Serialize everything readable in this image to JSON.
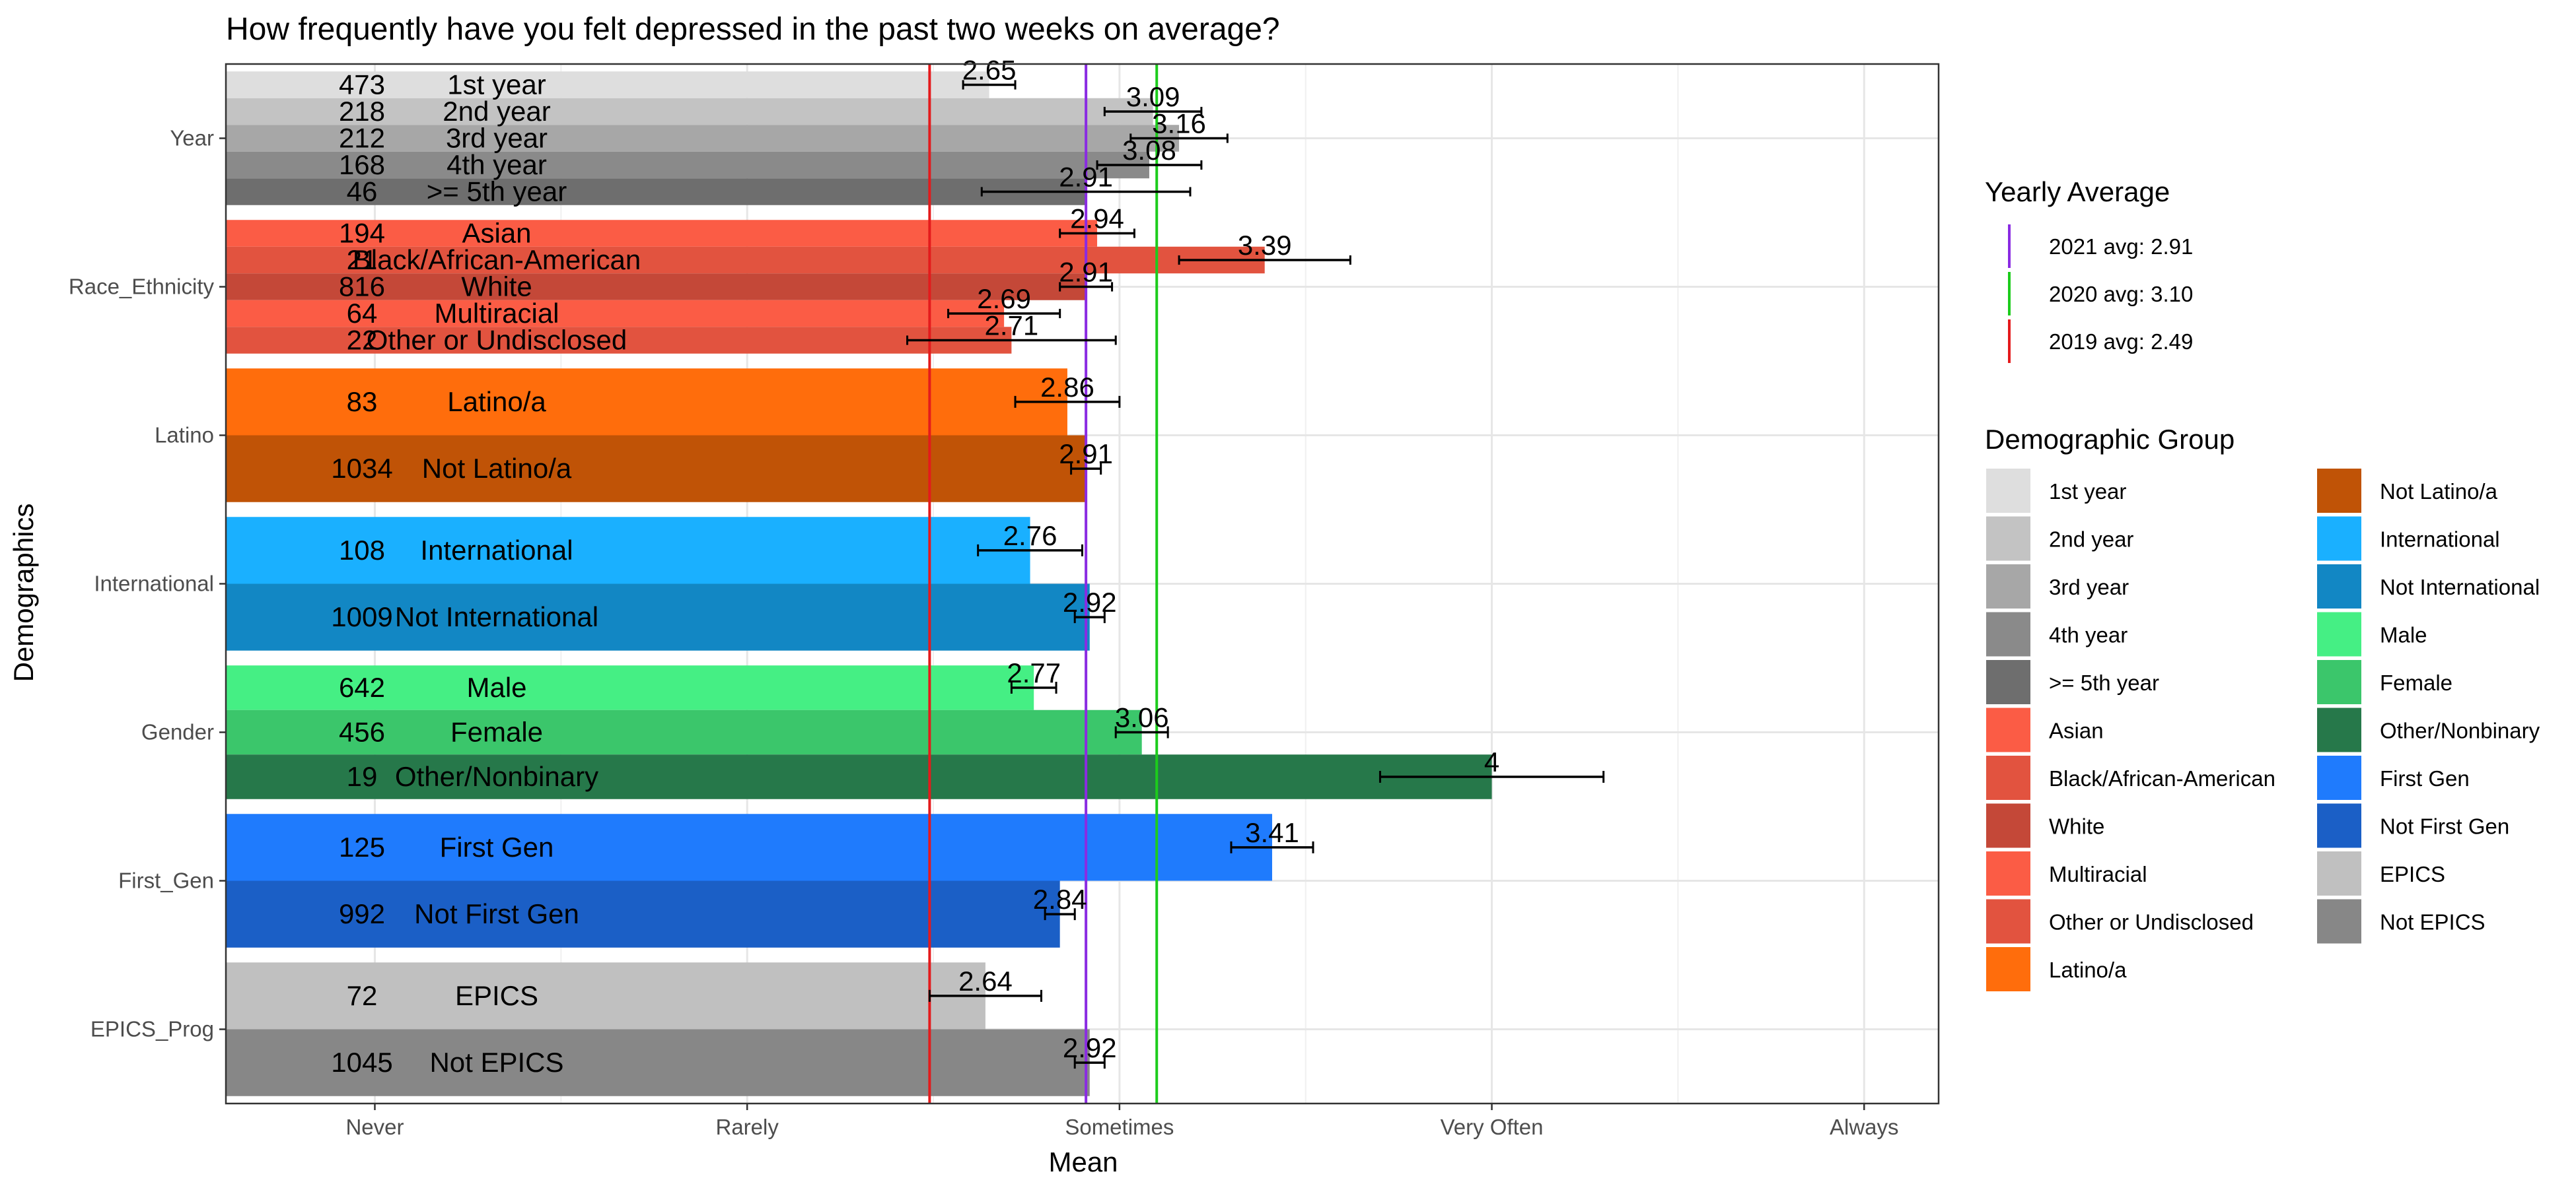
{
  "chart_data": {
    "type": "bar",
    "orientation": "horizontal",
    "title": "How frequently have you felt depressed in the past two weeks on average?",
    "xlabel": "Mean",
    "ylabel": "Demographics",
    "xlim": [
      0.6,
      5.2
    ],
    "x_ticks": [
      {
        "value": 1,
        "label": "Never"
      },
      {
        "value": 2,
        "label": "Rarely"
      },
      {
        "value": 3,
        "label": "Sometimes"
      },
      {
        "value": 4,
        "label": "Very Often"
      },
      {
        "value": 5,
        "label": "Always"
      }
    ],
    "categories": [
      "Year",
      "Race_Ethnicity",
      "Latino",
      "International",
      "Gender",
      "First_Gen",
      "EPICS_Prog"
    ],
    "groups": [
      {
        "category": "Year",
        "bars": [
          {
            "label": "1st year",
            "n": "473",
            "mean": 2.65,
            "mean_label": "2.65",
            "err_low": 2.58,
            "err_high": 2.72,
            "color": "#dedede"
          },
          {
            "label": "2nd year",
            "n": "218",
            "mean": 3.09,
            "mean_label": "3.09",
            "err_low": 2.96,
            "err_high": 3.22,
            "color": "#c3c3c3"
          },
          {
            "label": "3rd year",
            "n": "212",
            "mean": 3.16,
            "mean_label": "3.16",
            "err_low": 3.03,
            "err_high": 3.29,
            "color": "#a7a7a7"
          },
          {
            "label": "4th year",
            "n": "168",
            "mean": 3.08,
            "mean_label": "3.08",
            "err_low": 2.94,
            "err_high": 3.22,
            "color": "#8a8a8a"
          },
          {
            "label": ">= 5th year",
            "n": "46",
            "mean": 2.91,
            "mean_label": "2.91",
            "err_low": 2.63,
            "err_high": 3.19,
            "color": "#6e6e6e"
          }
        ]
      },
      {
        "category": "Race_Ethnicity",
        "bars": [
          {
            "label": "Asian",
            "n": "194",
            "mean": 2.94,
            "mean_label": "2.94",
            "err_low": 2.84,
            "err_high": 3.04,
            "color": "#fb5c45"
          },
          {
            "label": "Black/African-American",
            "n": "21",
            "mean": 3.39,
            "mean_label": "3.39",
            "err_low": 3.16,
            "err_high": 3.62,
            "color": "#e2533f"
          },
          {
            "label": "White",
            "n": "816",
            "mean": 2.91,
            "mean_label": "2.91",
            "err_low": 2.84,
            "err_high": 2.98,
            "color": "#c44838"
          },
          {
            "label": "Multiracial",
            "n": "64",
            "mean": 2.69,
            "mean_label": "2.69",
            "err_low": 2.54,
            "err_high": 2.84,
            "color": "#fb5c45"
          },
          {
            "label": "Other or Undisclosed",
            "n": "22",
            "mean": 2.71,
            "mean_label": "2.71",
            "err_low": 2.43,
            "err_high": 2.99,
            "color": "#e2533f"
          }
        ]
      },
      {
        "category": "Latino",
        "bars": [
          {
            "label": "Latino/a",
            "n": "83",
            "mean": 2.86,
            "mean_label": "2.86",
            "err_low": 2.72,
            "err_high": 3.0,
            "color": "#ff6d0c"
          },
          {
            "label": "Not Latino/a",
            "n": "1034",
            "mean": 2.91,
            "mean_label": "2.91",
            "err_low": 2.87,
            "err_high": 2.95,
            "color": "#c05306"
          }
        ]
      },
      {
        "category": "International",
        "bars": [
          {
            "label": "International",
            "n": "108",
            "mean": 2.76,
            "mean_label": "2.76",
            "err_low": 2.62,
            "err_high": 2.9,
            "color": "#1ab0ff"
          },
          {
            "label": "Not International",
            "n": "1009",
            "mean": 2.92,
            "mean_label": "2.92",
            "err_low": 2.88,
            "err_high": 2.96,
            "color": "#1287c4"
          }
        ]
      },
      {
        "category": "Gender",
        "bars": [
          {
            "label": "Male",
            "n": "642",
            "mean": 2.77,
            "mean_label": "2.77",
            "err_low": 2.71,
            "err_high": 2.83,
            "color": "#45ef84"
          },
          {
            "label": "Female",
            "n": "456",
            "mean": 3.06,
            "mean_label": "3.06",
            "err_low": 2.99,
            "err_high": 3.13,
            "color": "#3bc66b"
          },
          {
            "label": "Other/Nonbinary",
            "n": "19",
            "mean": 4,
            "mean_label": "4",
            "err_low": 3.7,
            "err_high": 4.3,
            "color": "#26784a"
          }
        ]
      },
      {
        "category": "First_Gen",
        "bars": [
          {
            "label": "First Gen",
            "n": "125",
            "mean": 3.41,
            "mean_label": "3.41",
            "err_low": 3.3,
            "err_high": 3.52,
            "color": "#1f7bfd"
          },
          {
            "label": "Not First Gen",
            "n": "992",
            "mean": 2.84,
            "mean_label": "2.84",
            "err_low": 2.8,
            "err_high": 2.88,
            "color": "#1b5fc6"
          }
        ]
      },
      {
        "category": "EPICS_Prog",
        "bars": [
          {
            "label": "EPICS",
            "n": "72",
            "mean": 2.64,
            "mean_label": "2.64",
            "err_low": 2.49,
            "err_high": 2.79,
            "color": "#c0c0c0"
          },
          {
            "label": "Not EPICS",
            "n": "1045",
            "mean": 2.92,
            "mean_label": "2.92",
            "err_low": 2.88,
            "err_high": 2.96,
            "color": "#878787"
          }
        ]
      }
    ],
    "reference_lines": [
      {
        "label": "2021 avg: 2.91",
        "value": 2.91,
        "color": "#8a2be2"
      },
      {
        "label": "2020 avg: 3.10",
        "value": 3.1,
        "color": "#1ccc1c"
      },
      {
        "label": "2019 avg: 2.49",
        "value": 2.49,
        "color": "#e41a1c"
      }
    ],
    "legend_yearly_title": "Yearly Average",
    "legend_group_title": "Demographic Group",
    "legend_groups": [
      {
        "label": "1st year",
        "color": "#dedede"
      },
      {
        "label": "2nd year",
        "color": "#c3c3c3"
      },
      {
        "label": "3rd year",
        "color": "#a7a7a7"
      },
      {
        "label": "4th year",
        "color": "#8a8a8a"
      },
      {
        "label": ">= 5th year",
        "color": "#6e6e6e"
      },
      {
        "label": "Asian",
        "color": "#fb5c45"
      },
      {
        "label": "Black/African-American",
        "color": "#e2533f"
      },
      {
        "label": "White",
        "color": "#c44838"
      },
      {
        "label": "Multiracial",
        "color": "#fb5c45"
      },
      {
        "label": "Other or Undisclosed",
        "color": "#e2533f"
      },
      {
        "label": "Latino/a",
        "color": "#ff6d0c"
      },
      {
        "label": "Not Latino/a",
        "color": "#c05306"
      },
      {
        "label": "International",
        "color": "#1ab0ff"
      },
      {
        "label": "Not International",
        "color": "#1287c4"
      },
      {
        "label": "Male",
        "color": "#45ef84"
      },
      {
        "label": "Female",
        "color": "#3bc66b"
      },
      {
        "label": "Other/Nonbinary",
        "color": "#26784a"
      },
      {
        "label": "First Gen",
        "color": "#1f7bfd"
      },
      {
        "label": "Not First Gen",
        "color": "#1b5fc6"
      },
      {
        "label": "EPICS",
        "color": "#c0c0c0"
      },
      {
        "label": "Not EPICS",
        "color": "#878787"
      }
    ],
    "grid": true,
    "legend_position": "right"
  }
}
